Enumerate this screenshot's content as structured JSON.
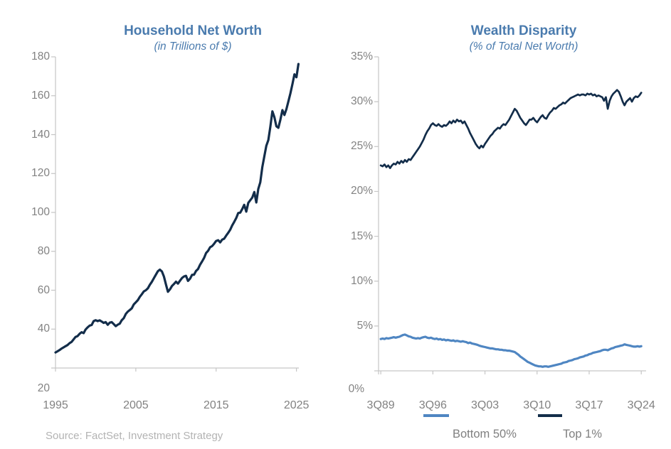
{
  "page": {
    "background": "#ffffff"
  },
  "source": {
    "text": "Source: FactSet, Investment Strategy"
  },
  "colors": {
    "title_blue": "#4a7bae",
    "line_navy": "#132d4a",
    "line_blue": "#4f86c2",
    "tick_text": "#828282",
    "axis_line": "#c6c6c6",
    "legend_text": "#7f7f7f",
    "source_text": "#b3b3b3"
  },
  "legend": {
    "position": "bottom-of-right-chart",
    "items": [
      {
        "label": "Bottom 50%",
        "color": "#4f86c2"
      },
      {
        "label": "Top 1%",
        "color": "#132d4a"
      }
    ]
  },
  "chart_data": [
    {
      "type": "line",
      "title": "Household Net Worth",
      "subtitle": "(in Trillions of $)",
      "xlabel": "",
      "ylabel": "",
      "grid": false,
      "legend_position": "none",
      "xlim": [
        1995,
        2025.3
      ],
      "ylim": [
        20,
        180
      ],
      "xticks": [
        "1995",
        "2005",
        "2015",
        "2025"
      ],
      "xtick_values": [
        1995,
        2005,
        2015,
        2025
      ],
      "yticks": [
        "180",
        "160",
        "140",
        "120",
        "100",
        "80",
        "60",
        "40",
        "20"
      ],
      "ytick_values": [
        180,
        160,
        140,
        120,
        100,
        80,
        60,
        40,
        20
      ],
      "series": [
        {
          "name": "Household Net Worth",
          "color": "#132d4a",
          "x_start": 1995.0,
          "x_step": 0.25,
          "y": [
            28.0,
            28.6,
            29.2,
            30.0,
            30.6,
            31.2,
            31.8,
            32.8,
            33.4,
            34.7,
            36.0,
            36.4,
            37.6,
            38.4,
            37.9,
            39.8,
            40.9,
            41.8,
            42.1,
            44.1,
            44.6,
            44.1,
            44.5,
            43.9,
            43.2,
            43.6,
            42.2,
            43.3,
            43.6,
            42.6,
            41.5,
            42.3,
            42.8,
            44.6,
            45.6,
            47.8,
            49.0,
            49.8,
            50.7,
            52.7,
            53.8,
            54.9,
            56.6,
            57.9,
            59.4,
            60.0,
            61.0,
            62.8,
            64.3,
            66.2,
            68.0,
            69.8,
            70.6,
            69.6,
            67.0,
            63.0,
            59.2,
            60.4,
            62.2,
            63.2,
            64.4,
            63.4,
            64.9,
            66.3,
            67.1,
            67.4,
            64.8,
            65.9,
            67.9,
            68.0,
            69.9,
            70.9,
            73.1,
            74.8,
            76.6,
            79.1,
            80.3,
            82.1,
            82.7,
            83.9,
            85.3,
            85.7,
            84.6,
            86.0,
            86.5,
            88.1,
            89.5,
            91.1,
            93.3,
            95.1,
            97.1,
            99.7,
            99.9,
            101.7,
            103.9,
            100.4,
            104.9,
            106.3,
            107.6,
            110.5,
            105.1,
            112.1,
            115.5,
            123.2,
            128.9,
            134.3,
            137.2,
            144.0,
            152.0,
            149.0,
            144.3,
            143.5,
            147.6,
            152.6,
            150.1,
            153.1,
            157.1,
            161.2,
            166.0,
            171.0,
            169.5,
            176.3
          ]
        }
      ]
    },
    {
      "type": "line",
      "title": "Wealth Disparity",
      "subtitle": "(% of Total Net Worth)",
      "xlabel": "",
      "ylabel": "",
      "grid": false,
      "legend_position": "bottom",
      "xlim": [
        1989.45,
        2025.4
      ],
      "ylim": [
        0,
        35
      ],
      "xticks": [
        "3Q89",
        "3Q96",
        "3Q03",
        "3Q10",
        "3Q17",
        "3Q24"
      ],
      "xtick_values": [
        1989.75,
        1996.75,
        2003.75,
        2010.75,
        2017.75,
        2024.75
      ],
      "yticks": [
        "35%",
        "30%",
        "25%",
        "20%",
        "15%",
        "10%",
        "5%",
        "0%"
      ],
      "ytick_values": [
        35,
        30,
        25,
        20,
        15,
        10,
        5,
        0
      ],
      "series": [
        {
          "name": "Bottom 50%",
          "color": "#4f86c2",
          "x_start": 1989.75,
          "x_step": 0.25,
          "y": [
            3.55,
            3.6,
            3.55,
            3.65,
            3.6,
            3.65,
            3.7,
            3.75,
            3.7,
            3.75,
            3.8,
            3.9,
            4.0,
            4.05,
            3.95,
            3.85,
            3.8,
            3.7,
            3.65,
            3.6,
            3.65,
            3.6,
            3.7,
            3.75,
            3.8,
            3.7,
            3.65,
            3.7,
            3.6,
            3.55,
            3.6,
            3.5,
            3.55,
            3.45,
            3.5,
            3.4,
            3.45,
            3.4,
            3.35,
            3.4,
            3.3,
            3.35,
            3.3,
            3.25,
            3.3,
            3.25,
            3.2,
            3.1,
            3.15,
            3.05,
            3.0,
            2.95,
            2.9,
            2.8,
            2.75,
            2.7,
            2.65,
            2.6,
            2.55,
            2.5,
            2.5,
            2.45,
            2.4,
            2.4,
            2.35,
            2.35,
            2.3,
            2.3,
            2.25,
            2.25,
            2.2,
            2.15,
            2.1,
            1.95,
            1.8,
            1.6,
            1.45,
            1.3,
            1.15,
            1.0,
            0.9,
            0.8,
            0.7,
            0.6,
            0.55,
            0.5,
            0.5,
            0.45,
            0.5,
            0.5,
            0.45,
            0.5,
            0.55,
            0.6,
            0.65,
            0.7,
            0.75,
            0.8,
            0.9,
            0.95,
            1.0,
            1.1,
            1.15,
            1.2,
            1.3,
            1.35,
            1.4,
            1.5,
            1.55,
            1.6,
            1.7,
            1.75,
            1.85,
            1.9,
            2.0,
            2.05,
            2.1,
            2.15,
            2.2,
            2.3,
            2.35,
            2.35,
            2.3,
            2.4,
            2.5,
            2.55,
            2.65,
            2.7,
            2.75,
            2.8,
            2.85,
            2.95,
            2.9,
            2.85,
            2.8,
            2.75,
            2.7,
            2.7,
            2.75,
            2.7,
            2.75
          ]
        },
        {
          "name": "Top 1%",
          "color": "#132d4a",
          "x_start": 1989.75,
          "x_step": 0.25,
          "y": [
            22.9,
            22.8,
            23.0,
            22.7,
            22.9,
            22.6,
            22.9,
            23.1,
            23.0,
            23.3,
            23.1,
            23.4,
            23.2,
            23.5,
            23.3,
            23.6,
            23.5,
            23.8,
            24.1,
            24.4,
            24.7,
            25.0,
            25.4,
            25.8,
            26.3,
            26.7,
            27.0,
            27.4,
            27.6,
            27.4,
            27.3,
            27.5,
            27.3,
            27.2,
            27.4,
            27.3,
            27.5,
            27.8,
            27.6,
            27.9,
            27.7,
            28.0,
            27.8,
            27.9,
            27.6,
            27.8,
            27.4,
            27.0,
            26.5,
            26.1,
            25.7,
            25.3,
            25.0,
            24.8,
            25.1,
            24.9,
            25.3,
            25.6,
            25.9,
            26.2,
            26.4,
            26.7,
            26.9,
            27.1,
            27.0,
            27.3,
            27.5,
            27.4,
            27.7,
            28.0,
            28.4,
            28.8,
            29.2,
            29.0,
            28.6,
            28.2,
            27.9,
            27.6,
            27.4,
            27.7,
            28.0,
            28.0,
            28.2,
            27.9,
            27.7,
            28.0,
            28.3,
            28.5,
            28.2,
            28.1,
            28.5,
            28.8,
            29.0,
            29.3,
            29.2,
            29.4,
            29.6,
            29.7,
            29.9,
            29.8,
            30.0,
            30.2,
            30.4,
            30.5,
            30.6,
            30.7,
            30.8,
            30.7,
            30.8,
            30.8,
            30.7,
            30.9,
            30.8,
            30.9,
            30.7,
            30.8,
            30.6,
            30.7,
            30.6,
            30.5,
            30.1,
            30.5,
            29.2,
            30.1,
            30.6,
            30.9,
            31.1,
            31.3,
            31.1,
            30.6,
            30.0,
            29.6,
            30.0,
            30.2,
            30.4,
            30.0,
            30.4,
            30.6,
            30.5,
            30.7,
            31.0
          ]
        }
      ]
    }
  ]
}
